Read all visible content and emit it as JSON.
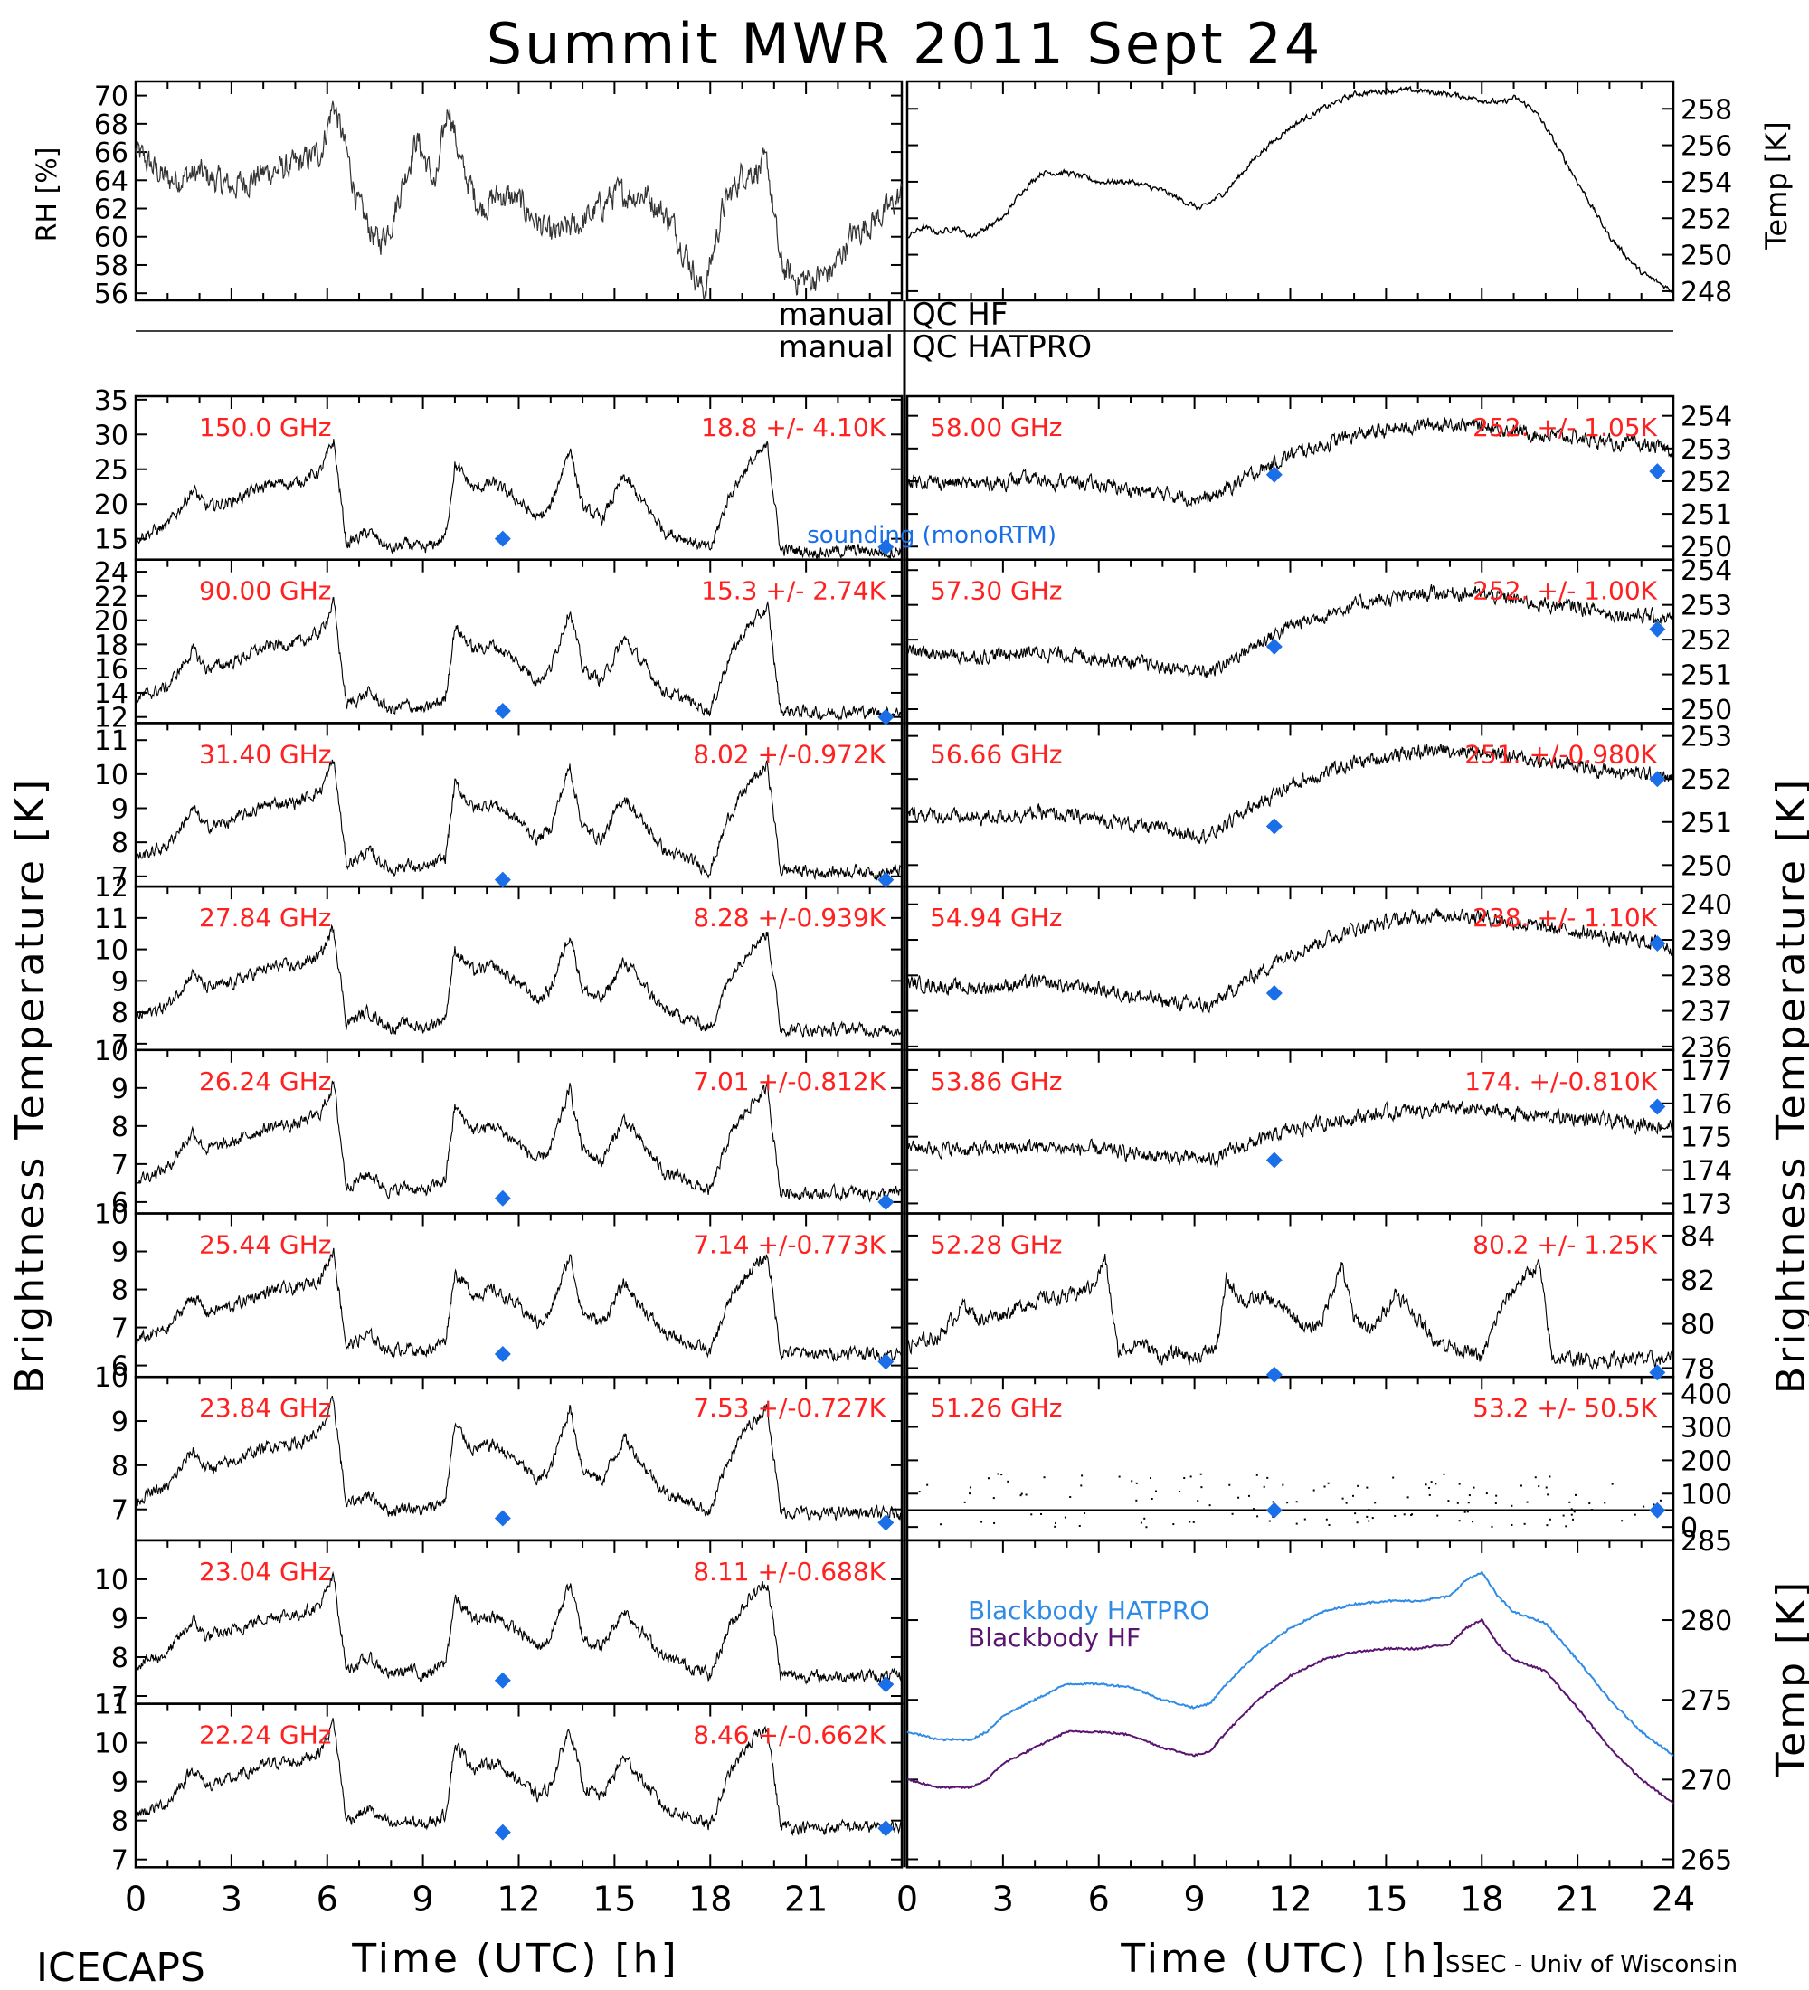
{
  "title": "Summit MWR 2011 Sept 24",
  "footer": {
    "left": "ICECAPS",
    "right": "SSEC - Univ of Wisconsin",
    "xlabel_left": "Time (UTC) [h]",
    "xlabel_right": "Time (UTC) [h]"
  },
  "labels": {
    "rh_axis": "RH [%]",
    "temp_axis": "Temp [K]",
    "bt_axis_left": "Brightness Temperature [K]",
    "bt_axis_right": "Brightness Temperature [K]",
    "bb_temp_axis": "Temp [K]",
    "qc_hf_left": "manual",
    "qc_hf_right": "QC HF",
    "qc_hatpro_left": "manual",
    "qc_hatpro_right": "QC HATPRO",
    "sounding": "sounding (monoRTM)",
    "bb_hatpro": "Blackbody HATPRO",
    "bb_hf": "Blackbody HF"
  },
  "colors": {
    "label_red": "#ff2020",
    "sounding_blue": "#1a6ee8",
    "bb_hatpro": "#2e8be6",
    "bb_hf": "#5a1470"
  },
  "chart_data": {
    "type": "line",
    "x_ticks": [
      "0",
      "3",
      "6",
      "9",
      "12",
      "15",
      "18",
      "21",
      "24"
    ],
    "xlim": [
      0,
      24
    ],
    "top": {
      "rh": {
        "ylim": [
          55.5,
          71
        ],
        "ticks": [
          "56",
          "58",
          "60",
          "62",
          "64",
          "66",
          "68",
          "70"
        ],
        "x": [
          0,
          1,
          2,
          3,
          4,
          5,
          5.8,
          6.2,
          6.6,
          7,
          7.6,
          8,
          8.8,
          9.4,
          9.8,
          10.2,
          10.8,
          11.4,
          12,
          13,
          14,
          15,
          16,
          16.8,
          17.4,
          17.8,
          18.4,
          19,
          19.8,
          20.2,
          20.6,
          21.2,
          21.8,
          22.4,
          23,
          23.6,
          24
        ],
        "y": [
          66,
          64,
          64.5,
          63.5,
          64.5,
          65,
          66,
          69.5,
          66,
          62,
          59.5,
          61,
          67,
          63.5,
          69.5,
          65,
          62,
          63,
          62.5,
          60,
          61,
          63,
          63,
          61,
          58,
          56,
          62,
          64.5,
          65,
          58,
          57,
          57,
          57.5,
          60,
          61,
          62,
          63
        ]
      },
      "temp": {
        "ylim": [
          247.5,
          259.5
        ],
        "ticks": [
          "248",
          "250",
          "252",
          "254",
          "256",
          "258"
        ],
        "x": [
          0,
          0.5,
          1,
          1.5,
          2,
          3,
          3.6,
          4.2,
          5,
          6,
          7,
          8,
          8.6,
          9.2,
          10,
          11,
          12,
          13,
          14,
          15,
          16,
          17,
          18,
          18.6,
          19,
          19.6,
          20,
          21,
          22,
          23,
          24
        ],
        "y": [
          251,
          251.5,
          251.2,
          251.5,
          251,
          252,
          253.5,
          254.5,
          254.5,
          254,
          254,
          253.5,
          253,
          252.5,
          253.5,
          255.5,
          257,
          258,
          258.8,
          259,
          259,
          258.8,
          258.5,
          258.3,
          258.6,
          258,
          257,
          254,
          251,
          249,
          248
        ]
      }
    },
    "left_channels": [
      {
        "freq": "150.0 GHz",
        "stat": "18.8 +/- 4.10K",
        "ylim": [
          12,
          35.5
        ],
        "ticks": [
          "15",
          "20",
          "25",
          "30",
          "35"
        ],
        "sounding": [
          [
            11.5,
            15
          ],
          [
            23.5,
            13.8
          ]
        ],
        "base": 12.5,
        "amp": 17.5
      },
      {
        "freq": "90.00 GHz",
        "stat": "15.3 +/- 2.74K",
        "ylim": [
          11.5,
          25
        ],
        "ticks": [
          "12",
          "14",
          "16",
          "18",
          "20",
          "22",
          "24"
        ],
        "sounding": [
          [
            11.5,
            12.5
          ],
          [
            23.5,
            12
          ]
        ],
        "base": 12,
        "amp": 10
      },
      {
        "freq": "31.40 GHz",
        "stat": "8.02 +/-0.972K",
        "ylim": [
          6.7,
          11.5
        ],
        "ticks": [
          "7",
          "8",
          "9",
          "10",
          "11"
        ],
        "sounding": [
          [
            11.5,
            6.9
          ],
          [
            23.5,
            6.9
          ]
        ],
        "base": 7,
        "amp": 3.6
      },
      {
        "freq": "27.84 GHz",
        "stat": "8.28 +/-0.939K",
        "ylim": [
          6.8,
          12
        ],
        "ticks": [
          "7",
          "8",
          "9",
          "10",
          "11",
          "12"
        ],
        "sounding": [],
        "base": 7.3,
        "amp": 3.6
      },
      {
        "freq": "26.24 GHz",
        "stat": "7.01 +/-0.812K",
        "ylim": [
          5.7,
          10
        ],
        "ticks": [
          "6",
          "7",
          "8",
          "9",
          "10"
        ],
        "sounding": [
          [
            11.5,
            6.1
          ],
          [
            23.5,
            6
          ]
        ],
        "base": 6.1,
        "amp": 3.2
      },
      {
        "freq": "25.44 GHz",
        "stat": "7.14 +/-0.773K",
        "ylim": [
          5.7,
          10
        ],
        "ticks": [
          "6",
          "7",
          "8",
          "9",
          "10"
        ],
        "sounding": [
          [
            11.5,
            6.3
          ],
          [
            23.5,
            6.1
          ]
        ],
        "base": 6.2,
        "amp": 3
      },
      {
        "freq": "23.84 GHz",
        "stat": "7.53 +/-0.727K",
        "ylim": [
          6.3,
          10
        ],
        "ticks": [
          "7",
          "8",
          "9",
          "10"
        ],
        "sounding": [
          [
            11.5,
            6.8
          ],
          [
            23.5,
            6.7
          ]
        ],
        "base": 6.8,
        "amp": 2.8
      },
      {
        "freq": "23.04 GHz",
        "stat": "8.11 +/-0.688K",
        "ylim": [
          6.8,
          11
        ],
        "ticks": [
          "7",
          "8",
          "9",
          "10"
        ],
        "sounding": [
          [
            11.5,
            7.4
          ],
          [
            23.5,
            7.3
          ]
        ],
        "base": 7.4,
        "amp": 2.8
      },
      {
        "freq": "22.24 GHz",
        "stat": "8.46 +/-0.662K",
        "ylim": [
          6.8,
          11
        ],
        "ticks": [
          "7",
          "8",
          "9",
          "10",
          "11"
        ],
        "sounding": [
          [
            11.5,
            7.7
          ],
          [
            23.5,
            7.8
          ]
        ],
        "base": 7.7,
        "amp": 3
      }
    ],
    "right_channels": [
      {
        "freq": "58.00 GHz",
        "stat": "252. +/- 1.05K",
        "ylim": [
          249.6,
          254.6
        ],
        "ticks": [
          "250",
          "251",
          "252",
          "253",
          "254"
        ],
        "sounding": [
          [
            11.5,
            252.2
          ],
          [
            23.5,
            252.3
          ]
        ],
        "base": 251,
        "amp": 3
      },
      {
        "freq": "57.30 GHz",
        "stat": "252. +/- 1.00K",
        "ylim": [
          249.6,
          254.3
        ],
        "ticks": [
          "250",
          "251",
          "252",
          "253",
          "254"
        ],
        "sounding": [
          [
            11.5,
            251.8
          ],
          [
            23.5,
            252.3
          ]
        ],
        "base": 250.6,
        "amp": 3
      },
      {
        "freq": "56.66 GHz",
        "stat": "251. +/-0.980K",
        "ylim": [
          249.5,
          253.3
        ],
        "ticks": [
          "250",
          "251",
          "252",
          "253"
        ],
        "sounding": [
          [
            11.5,
            250.9
          ],
          [
            23.5,
            252
          ]
        ],
        "base": 250.3,
        "amp": 2.6
      },
      {
        "freq": "54.94 GHz",
        "stat": "238. +/- 1.10K",
        "ylim": [
          235.9,
          240.5
        ],
        "ticks": [
          "236",
          "237",
          "238",
          "239",
          "240"
        ],
        "sounding": [
          [
            11.5,
            237.5
          ],
          [
            23.5,
            238.9
          ]
        ],
        "base": 236.6,
        "amp": 3.4
      },
      {
        "freq": "53.86 GHz",
        "stat": "174. +/-0.810K",
        "ylim": [
          172.7,
          177.6
        ],
        "ticks": [
          "173",
          "174",
          "175",
          "176",
          "177"
        ],
        "sounding": [
          [
            11.5,
            174.3
          ],
          [
            23.5,
            175.9
          ]
        ],
        "base": 174,
        "amp": 2
      },
      {
        "freq": "52.28 GHz",
        "stat": "80.2 +/- 1.25K",
        "ylim": [
          77.6,
          85
        ],
        "ticks": [
          "78",
          "80",
          "82",
          "84"
        ],
        "sounding": [
          [
            11.5,
            77.7
          ],
          [
            23.5,
            77.8
          ]
        ],
        "base": 78.2,
        "amp": 5
      },
      {
        "freq": "51.26 GHz",
        "stat": "53.2 +/- 50.5K",
        "ylim": [
          -40,
          450
        ],
        "ticks": [
          "0",
          "100",
          "200",
          "300",
          "400"
        ],
        "sounding": [
          [
            11.5,
            50
          ],
          [
            23.5,
            50
          ]
        ],
        "base": 50,
        "amp": 0
      }
    ],
    "blackbody": {
      "ylim": [
        264.5,
        285
      ],
      "ticks": [
        "265",
        "270",
        "275",
        "280",
        "285"
      ],
      "x": [
        0,
        1,
        2,
        2.5,
        3,
        4,
        5,
        6,
        7,
        8,
        9,
        9.5,
        10,
        11,
        12,
        13,
        14,
        15,
        16,
        17,
        17.5,
        18,
        18.5,
        19,
        20,
        21,
        22,
        23,
        24
      ],
      "hatpro": [
        273,
        272.5,
        272.5,
        273,
        274,
        275,
        276,
        276,
        275.8,
        275,
        274.5,
        274.8,
        276,
        278,
        279.5,
        280.5,
        281,
        281.2,
        281.2,
        281.5,
        282.5,
        283,
        281.5,
        280.5,
        279.8,
        277.5,
        275,
        273,
        271.5
      ],
      "hf": [
        270,
        269.5,
        269.5,
        270,
        271,
        272,
        273,
        273,
        272.8,
        272,
        271.5,
        271.8,
        273,
        275,
        276.5,
        277.5,
        278,
        278.2,
        278.2,
        278.5,
        279.5,
        280,
        278.5,
        277.5,
        276.8,
        274.5,
        272,
        270,
        268.5
      ]
    }
  }
}
